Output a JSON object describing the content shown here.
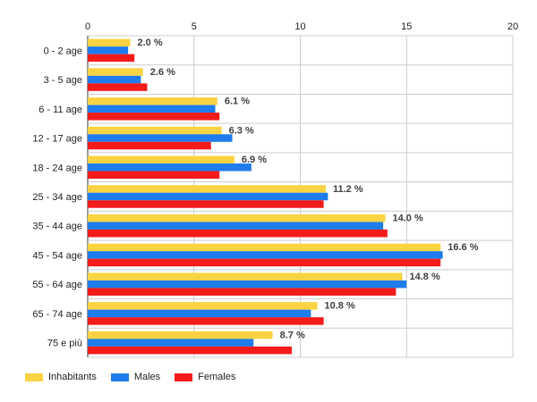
{
  "chart_data": {
    "type": "bar",
    "orientation": "horizontal",
    "categories": [
      "0 - 2 age",
      "3 - 5 age",
      "6 - 11 age",
      "12 - 17 age",
      "18 - 24 age",
      "25 - 34 age",
      "35 - 44 age",
      "45 - 54 age",
      "55 - 64 age",
      "65 - 74 age",
      "75 e più"
    ],
    "series": [
      {
        "name": "Inhabitants",
        "color": "#f9d342",
        "values": [
          2.0,
          2.6,
          6.1,
          6.3,
          6.9,
          11.2,
          14.0,
          16.6,
          14.8,
          10.8,
          8.7
        ]
      },
      {
        "name": "Males",
        "color": "#1e7cec",
        "values": [
          1.9,
          2.5,
          6.0,
          6.8,
          7.7,
          11.3,
          13.9,
          16.7,
          15.0,
          10.5,
          7.8
        ]
      },
      {
        "name": "Females",
        "color": "#f41b1b",
        "values": [
          2.2,
          2.8,
          6.2,
          5.8,
          6.2,
          11.1,
          14.1,
          16.6,
          14.5,
          11.1,
          9.6
        ]
      }
    ],
    "data_labels": [
      "2.0 %",
      "2.6 %",
      "6.1 %",
      "6.3 %",
      "6.9 %",
      "11.2 %",
      "14.0 %",
      "16.6 %",
      "14.8 %",
      "10.8 %",
      "8.7 %"
    ],
    "x_ticks": [
      "0",
      "5",
      "10",
      "15",
      "20"
    ],
    "xlim": [
      0,
      20
    ],
    "axis_position": "top",
    "grid": true,
    "legend_position": "bottom-left",
    "title": "",
    "xlabel": "",
    "ylabel": ""
  }
}
